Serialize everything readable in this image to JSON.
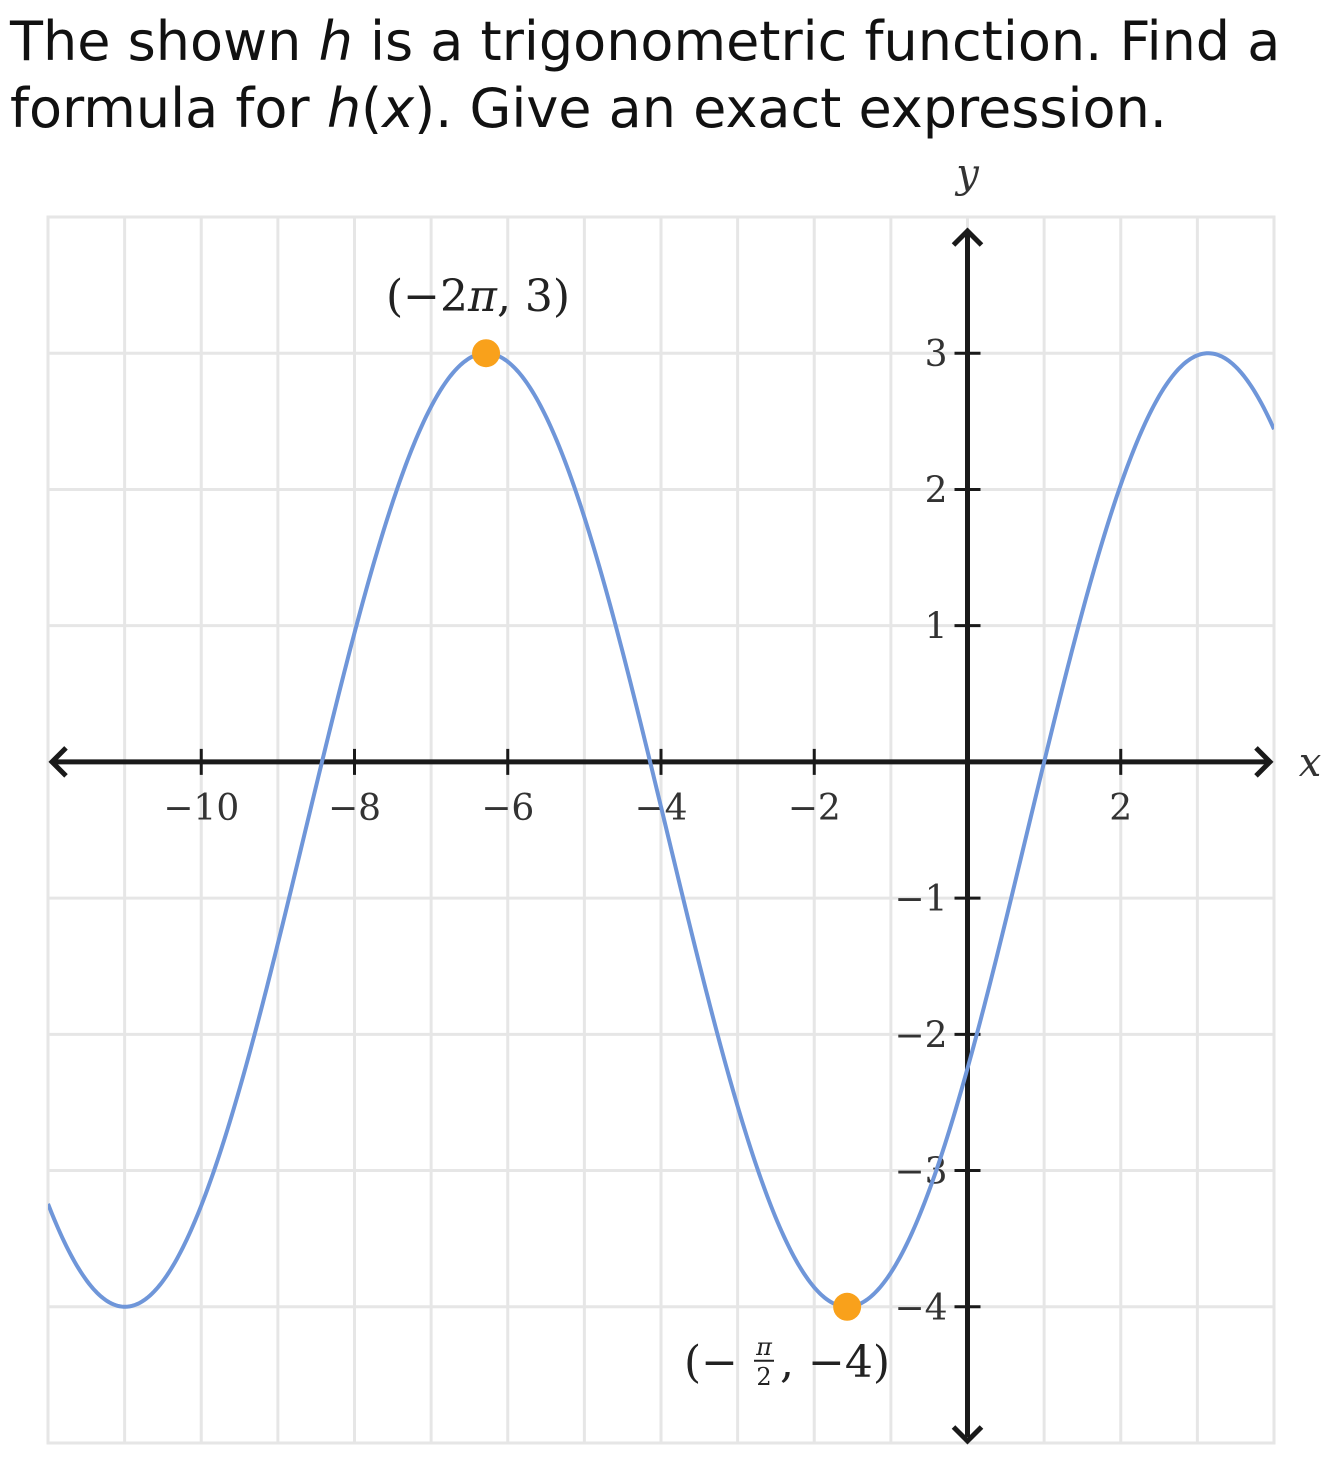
{
  "prompt": {
    "line1_pre": "The shown ",
    "var_h": "h",
    "line1_post": " is a trigonometric function. Find a",
    "line2_pre": "formula for ",
    "line2_var": "h",
    "line2_paren_open": "(",
    "line2_x": "x",
    "line2_post": "). Give an exact expression."
  },
  "chart_data": {
    "type": "line",
    "title": "",
    "xlabel": "x",
    "ylabel": "y",
    "xlim": [
      -12,
      4
    ],
    "ylim": [
      -5,
      4
    ],
    "x_ticks": [
      -10,
      -8,
      -6,
      -4,
      -2,
      2
    ],
    "x_tick_labels": [
      "−10",
      "−8",
      "−6",
      "−4",
      "−2",
      "2"
    ],
    "y_ticks": [
      3,
      2,
      1,
      -1,
      -2,
      -3,
      -4
    ],
    "y_tick_labels": [
      "3",
      "2",
      "1",
      "−1",
      "−2",
      "−3",
      "−4"
    ],
    "grid": true,
    "series": [
      {
        "name": "h(x)",
        "color": "#6f96d9",
        "function": "-0.5 + 3.5*cos((2/3)*(x + 2*pi))",
        "amplitude": 3.5,
        "midline": -0.5,
        "period": 9.42478,
        "x_range": [
          -12,
          4
        ]
      }
    ],
    "points": [
      {
        "x": -6.28319,
        "y": 3,
        "label_open": "(−2",
        "label_pi": "π",
        "label_close": ", 3)",
        "color": "#f9a11b"
      },
      {
        "x": -1.5708,
        "y": -4,
        "label_open": "(−",
        "label_num": "π",
        "label_den": "2",
        "label_close": ", −4)",
        "color": "#f9a11b"
      }
    ]
  }
}
